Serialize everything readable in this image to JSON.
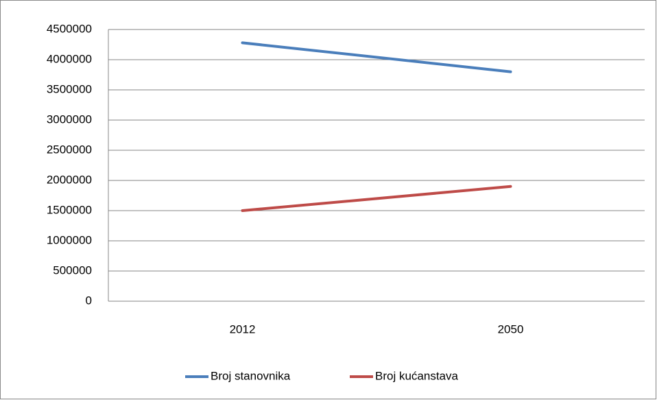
{
  "chart_data": {
    "type": "line",
    "categories": [
      "2012",
      "2050"
    ],
    "series": [
      {
        "name": "Broj stanovnika",
        "color": "#4a7ebb",
        "values": [
          4280000,
          3800000
        ]
      },
      {
        "name": "Broj kućanstava",
        "color": "#be4b48",
        "values": [
          1500000,
          1900000
        ]
      }
    ],
    "ylim": [
      0,
      4500000
    ],
    "yticks": [
      0,
      500000,
      1000000,
      1500000,
      2000000,
      2500000,
      3000000,
      3500000,
      4000000,
      4500000
    ],
    "grid": true,
    "legend": "bottom"
  }
}
